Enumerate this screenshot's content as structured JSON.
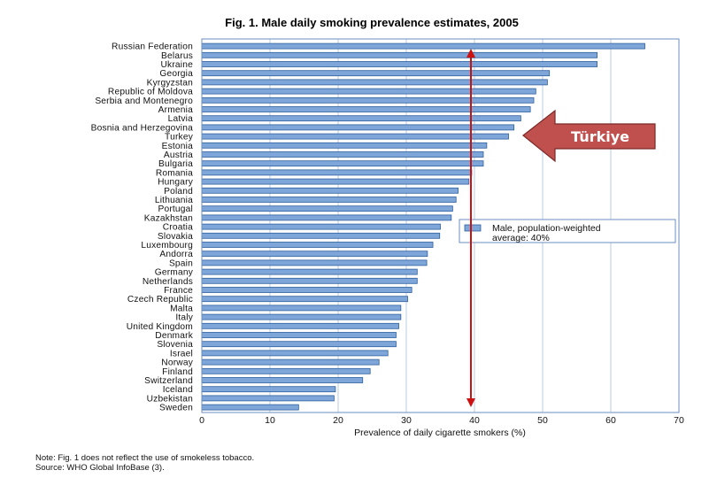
{
  "chart_data": {
    "type": "bar",
    "orientation": "horizontal",
    "title": "Fig. 1. Male daily smoking prevalence estimates, 2005",
    "xlabel": "Prevalence of daily cigarette smokers (%)",
    "ylabel": "",
    "xlim": [
      0,
      70
    ],
    "xticks": [
      "0",
      "10",
      "20",
      "30",
      "40",
      "50",
      "60",
      "70"
    ],
    "grid": true,
    "categories": [
      "Russian Federation",
      "Belarus",
      "Ukraine",
      "Georgia",
      "Kyrgyzstan",
      "Republic of Moldova",
      "Serbia and Montenegro",
      "Armenia",
      "Latvia",
      "Bosnia and Herzegovina",
      "Turkey",
      "Estonia",
      "Austria",
      "Bulgaria",
      "Romania",
      "Hungary",
      "Poland",
      "Lithuania",
      "Portugal",
      "Kazakhstan",
      "Croatia",
      "Slovakia",
      "Luxembourg",
      "Andorra",
      "Spain",
      "Germany",
      "Netherlands",
      "France",
      "Czech Republic",
      "Malta",
      "Italy",
      "United Kingdom",
      "Denmark",
      "Slovenia",
      "Israel",
      "Norway",
      "Finland",
      "Switzerland",
      "Iceland",
      "Uzbekistan",
      "Sweden"
    ],
    "series": [
      {
        "name": "Male, population-weighted average: 40%",
        "values": [
          65,
          58,
          58,
          51,
          50.7,
          49,
          48.7,
          48.2,
          46.8,
          45.8,
          45,
          41.8,
          41.3,
          41.3,
          39.6,
          39.2,
          37.6,
          37.3,
          36.8,
          36.6,
          35,
          34.9,
          33.9,
          33.1,
          33,
          31.6,
          31.6,
          30.8,
          30.2,
          29.2,
          29.2,
          28.9,
          28.5,
          28.5,
          27.3,
          26,
          24.7,
          23.6,
          19.6,
          19.4,
          14.2
        ]
      }
    ],
    "reference_line": {
      "value": 40,
      "label": "population-weighted average"
    },
    "legend_position": "right",
    "legend_text_line1": "Male, population-weighted",
    "legend_text_line2": "average: 40%",
    "callout": {
      "label": "Türkiye",
      "points_to": "Turkey",
      "color": "#c0504d"
    },
    "note_line1": "Note: Fig. 1 does not reflect the use of smokeless tobacco.",
    "note_line2": "Source: WHO Global InfoBase (3).",
    "colors": {
      "bar": "#7fa6d8",
      "bar_edge": "#2f5f9e",
      "grid": "#b8cbe4",
      "line": "#cc1111"
    }
  }
}
